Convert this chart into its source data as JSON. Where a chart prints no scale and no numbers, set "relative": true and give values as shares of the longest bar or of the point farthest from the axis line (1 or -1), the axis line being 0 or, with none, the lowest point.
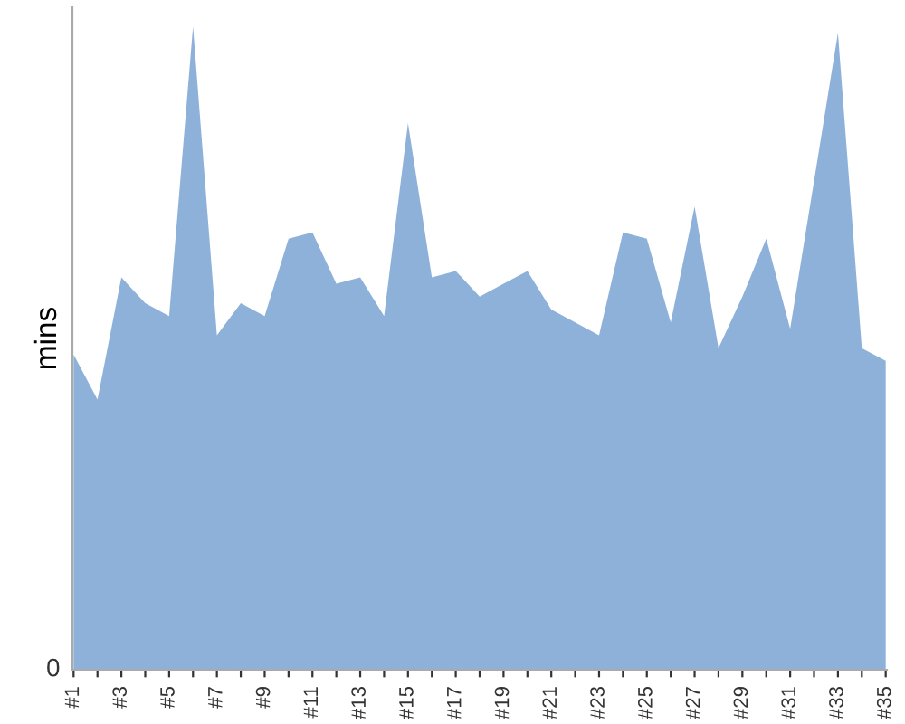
{
  "chart_data": {
    "type": "area",
    "ylabel": "mins",
    "relative": true,
    "annotations": [
      "0"
    ],
    "grid": false,
    "legend": false,
    "categories": [
      "#1",
      null,
      "#3",
      null,
      "#5",
      null,
      "#7",
      null,
      "#9",
      null,
      "#11",
      null,
      "#13",
      null,
      "#15",
      null,
      "#17",
      null,
      "#19",
      null,
      "#21",
      null,
      "#23",
      null,
      "#25",
      null,
      "#27",
      null,
      "#29",
      null,
      "#31",
      null,
      "#33",
      null,
      "#35"
    ],
    "series": [
      {
        "color": "#8eb1da",
        "values": [
          0.49,
          0.42,
          0.61,
          0.57,
          0.55,
          1,
          0.52,
          0.57,
          0.55,
          0.67,
          0.68,
          0.6,
          0.61,
          0.55,
          0.85,
          0.61,
          0.62,
          0.58,
          0.6,
          0.62,
          0.56,
          0.54,
          0.52,
          0.68,
          0.67,
          0.54,
          0.72,
          0.5,
          0.58,
          0.67,
          0.53,
          0.76,
          0.99,
          0.5,
          0.48
        ]
      }
    ]
  }
}
